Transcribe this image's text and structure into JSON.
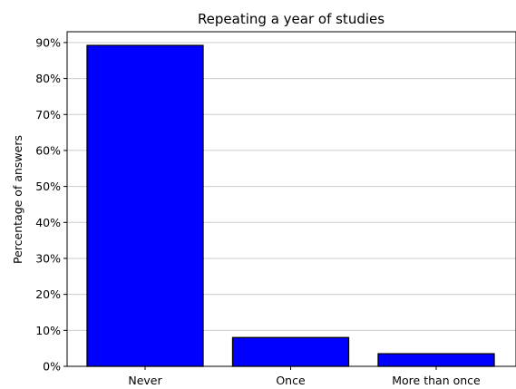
{
  "chart_data": {
    "type": "bar",
    "title": "Repeating a year of studies",
    "xlabel": "",
    "ylabel": "Percentage of answers",
    "categories": [
      "Never",
      "Once",
      "More than once"
    ],
    "values": [
      89.2,
      8.0,
      3.5
    ],
    "ylim": [
      0,
      93
    ],
    "yticks": [
      0,
      10,
      20,
      30,
      40,
      50,
      60,
      70,
      80,
      90
    ],
    "ytick_labels": [
      "0%",
      "10%",
      "20%",
      "30%",
      "40%",
      "50%",
      "60%",
      "70%",
      "80%",
      "90%"
    ],
    "grid": "horizontal",
    "bar_color": "#0000ff",
    "edge_color": "#000000"
  }
}
